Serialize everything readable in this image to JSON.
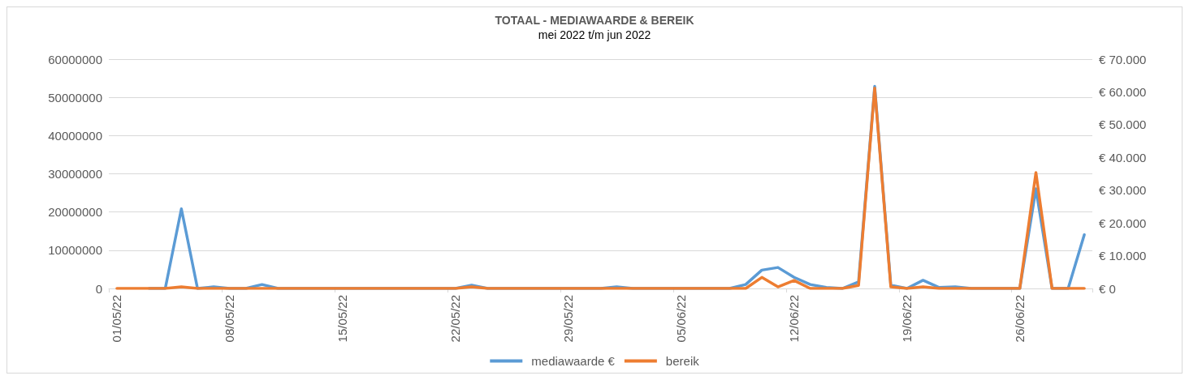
{
  "chart_data": {
    "type": "line",
    "title": "TOTAAL - MEDIAWAARDE & BEREIK",
    "subtitle": "mei 2022 t/m jun 2022",
    "categories": [
      "01/05/22",
      null,
      null,
      null,
      null,
      null,
      null,
      "08/05/22",
      null,
      null,
      null,
      null,
      null,
      null,
      "15/05/22",
      null,
      null,
      null,
      null,
      null,
      null,
      "22/05/22",
      null,
      null,
      null,
      null,
      null,
      null,
      "29/05/22",
      null,
      null,
      null,
      null,
      null,
      null,
      "05/06/22",
      null,
      null,
      null,
      null,
      null,
      null,
      "12/06/22",
      null,
      null,
      null,
      null,
      null,
      null,
      "19/06/22",
      null,
      null,
      null,
      null,
      null,
      null,
      "26/06/22",
      null,
      null,
      null,
      null
    ],
    "series": [
      {
        "name": "mediawaarde €",
        "color": "#5b9bd5",
        "axis": "y2",
        "values": [
          null,
          null,
          0,
          0,
          24300,
          0,
          500,
          0,
          0,
          1200,
          0,
          0,
          0,
          0,
          0,
          0,
          0,
          0,
          0,
          0,
          0,
          0,
          1000,
          0,
          0,
          0,
          0,
          0,
          0,
          0,
          0,
          500,
          0,
          0,
          0,
          0,
          0,
          0,
          0,
          1200,
          5600,
          6400,
          3400,
          1200,
          300,
          0,
          2000,
          61700,
          1000,
          0,
          2500,
          300,
          500,
          0,
          0,
          0,
          0,
          30400,
          0,
          0,
          16400
        ]
      },
      {
        "name": "bereik",
        "color": "#ed7d31",
        "values": [
          0,
          0,
          0,
          0,
          400000,
          0,
          0,
          0,
          0,
          0,
          0,
          0,
          0,
          0,
          0,
          0,
          0,
          0,
          0,
          0,
          0,
          0,
          400000,
          0,
          0,
          0,
          0,
          0,
          0,
          0,
          0,
          0,
          0,
          0,
          0,
          0,
          0,
          0,
          0,
          0,
          2900000,
          400000,
          2100000,
          0,
          0,
          0,
          800000,
          52400000,
          400000,
          0,
          400000,
          0,
          0,
          0,
          0,
          0,
          0,
          30300000,
          0,
          0,
          0
        ]
      }
    ],
    "ylim": [
      0,
      60000000
    ],
    "yticks": [
      0,
      10000000,
      20000000,
      30000000,
      40000000,
      50000000,
      60000000
    ],
    "y2lim": [
      0,
      70000
    ],
    "y2ticks": [
      {
        "value": 0,
        "label": "€ 0"
      },
      {
        "value": 10000,
        "label": "€ 10.000"
      },
      {
        "value": 20000,
        "label": "€ 20.000"
      },
      {
        "value": 30000,
        "label": "€ 30.000"
      },
      {
        "value": 40000,
        "label": "€ 40.000"
      },
      {
        "value": 50000,
        "label": "€ 50.000"
      },
      {
        "value": 60000,
        "label": "€ 60.000"
      },
      {
        "value": 70000,
        "label": "€ 70.000"
      }
    ],
    "grid": "y",
    "legend": "bottom",
    "marker": "none",
    "line_style": "solid"
  }
}
